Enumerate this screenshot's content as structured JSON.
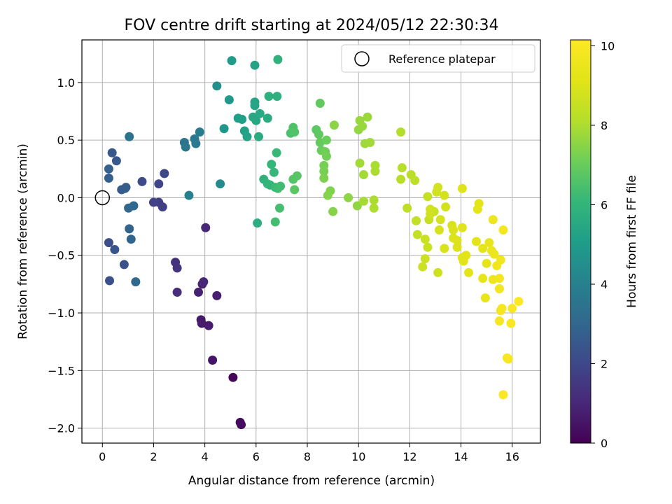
{
  "chart_data": {
    "type": "scatter",
    "title": "FOV centre drift starting at 2024/05/12 22:30:34",
    "xlabel": "Angular distance from reference (arcmin)",
    "ylabel": "Rotation from reference (arcmin)",
    "xlim": [
      -0.8,
      17.1
    ],
    "ylim": [
      -2.13,
      1.37
    ],
    "xticks": [
      0,
      2,
      4,
      6,
      8,
      10,
      12,
      14,
      16
    ],
    "yticks": [
      -2.0,
      -1.5,
      -1.0,
      -0.5,
      0.0,
      0.5,
      1.0
    ],
    "xtick_labels": [
      "0",
      "2",
      "4",
      "6",
      "8",
      "10",
      "12",
      "14",
      "16"
    ],
    "ytick_labels": [
      "−2.0",
      "−1.5",
      "−1.0",
      "−0.5",
      "0.0",
      "0.5",
      "1.0"
    ],
    "grid": true,
    "legend": {
      "placement": "upper right",
      "label": "Reference platepar",
      "marker": "open circle"
    },
    "reference_point": {
      "x": 0,
      "y": 0
    },
    "colormap": "viridis",
    "colorbar": {
      "label": "Hours from first FF file",
      "range": [
        0,
        10.15
      ],
      "ticks": [
        0,
        2,
        4,
        6,
        8,
        10
      ],
      "tick_labels": [
        "0",
        "2",
        "4",
        "6",
        "8",
        "10"
      ]
    },
    "points": [
      {
        "x": 5.1,
        "y": -1.56,
        "c": 0.15
      },
      {
        "x": 5.38,
        "y": -1.95,
        "c": 0.25
      },
      {
        "x": 5.42,
        "y": -1.97,
        "c": 0.3
      },
      {
        "x": 4.3,
        "y": -1.41,
        "c": 0.5
      },
      {
        "x": 3.85,
        "y": -1.06,
        "c": 0.6
      },
      {
        "x": 3.88,
        "y": -1.09,
        "c": 0.65
      },
      {
        "x": 4.15,
        "y": -1.11,
        "c": 0.7
      },
      {
        "x": 4.47,
        "y": -0.85,
        "c": 0.8
      },
      {
        "x": 3.75,
        "y": -0.82,
        "c": 0.85
      },
      {
        "x": 3.9,
        "y": -0.75,
        "c": 0.9
      },
      {
        "x": 3.95,
        "y": -0.73,
        "c": 0.95
      },
      {
        "x": 4.03,
        "y": -0.26,
        "c": 1.0
      },
      {
        "x": 2.92,
        "y": -0.82,
        "c": 1.2
      },
      {
        "x": 2.85,
        "y": -0.56,
        "c": 1.35
      },
      {
        "x": 2.92,
        "y": -0.61,
        "c": 1.4
      },
      {
        "x": 2.2,
        "y": -0.04,
        "c": 1.7
      },
      {
        "x": 2.35,
        "y": -0.08,
        "c": 1.75
      },
      {
        "x": 2.0,
        "y": -0.04,
        "c": 1.85
      },
      {
        "x": 2.2,
        "y": 0.12,
        "c": 1.9
      },
      {
        "x": 2.42,
        "y": 0.21,
        "c": 2.0
      },
      {
        "x": 1.55,
        "y": 0.14,
        "c": 2.1
      },
      {
        "x": 0.25,
        "y": -0.39,
        "c": 2.2
      },
      {
        "x": 0.28,
        "y": -0.72,
        "c": 2.25
      },
      {
        "x": 0.85,
        "y": -0.58,
        "c": 2.3
      },
      {
        "x": 0.48,
        "y": -0.45,
        "c": 2.4
      },
      {
        "x": 0.38,
        "y": 0.39,
        "c": 2.5
      },
      {
        "x": 0.55,
        "y": 0.32,
        "c": 2.55
      },
      {
        "x": 0.75,
        "y": 0.07,
        "c": 2.6
      },
      {
        "x": 0.88,
        "y": 0.08,
        "c": 2.65
      },
      {
        "x": 0.92,
        "y": 0.09,
        "c": 2.7
      },
      {
        "x": 0.25,
        "y": 0.17,
        "c": 2.75
      },
      {
        "x": 0.25,
        "y": 0.25,
        "c": 2.8
      },
      {
        "x": 1.05,
        "y": -0.27,
        "c": 2.9
      },
      {
        "x": 1.12,
        "y": -0.36,
        "c": 2.95
      },
      {
        "x": 1.02,
        "y": -0.09,
        "c": 3.0
      },
      {
        "x": 1.22,
        "y": -0.07,
        "c": 3.05
      },
      {
        "x": 1.3,
        "y": -0.73,
        "c": 3.1
      },
      {
        "x": 1.05,
        "y": 0.53,
        "c": 3.5
      },
      {
        "x": 3.2,
        "y": 0.48,
        "c": 3.6
      },
      {
        "x": 3.25,
        "y": 0.44,
        "c": 3.65
      },
      {
        "x": 3.6,
        "y": 0.51,
        "c": 3.7
      },
      {
        "x": 3.65,
        "y": 0.47,
        "c": 3.75
      },
      {
        "x": 3.8,
        "y": 0.57,
        "c": 3.8
      },
      {
        "x": 3.38,
        "y": 0.02,
        "c": 4.0
      },
      {
        "x": 4.6,
        "y": 0.12,
        "c": 4.4
      },
      {
        "x": 4.47,
        "y": 0.97,
        "c": 4.6
      },
      {
        "x": 4.75,
        "y": 0.6,
        "c": 4.8
      },
      {
        "x": 4.95,
        "y": 0.85,
        "c": 4.9
      },
      {
        "x": 5.05,
        "y": 1.19,
        "c": 5.0
      },
      {
        "x": 5.3,
        "y": 0.69,
        "c": 5.1
      },
      {
        "x": 5.45,
        "y": 0.68,
        "c": 5.15
      },
      {
        "x": 5.55,
        "y": 0.58,
        "c": 5.2
      },
      {
        "x": 5.65,
        "y": 0.53,
        "c": 5.25
      },
      {
        "x": 5.95,
        "y": 1.15,
        "c": 5.3
      },
      {
        "x": 5.95,
        "y": 0.83,
        "c": 5.35
      },
      {
        "x": 5.95,
        "y": 0.8,
        "c": 5.4
      },
      {
        "x": 5.88,
        "y": 0.7,
        "c": 5.45
      },
      {
        "x": 6.0,
        "y": 0.67,
        "c": 5.5
      },
      {
        "x": 6.15,
        "y": 0.73,
        "c": 5.55
      },
      {
        "x": 6.45,
        "y": 0.69,
        "c": 5.6
      },
      {
        "x": 6.1,
        "y": 0.53,
        "c": 5.65
      },
      {
        "x": 6.05,
        "y": -0.22,
        "c": 5.7
      },
      {
        "x": 6.5,
        "y": 0.88,
        "c": 5.75
      },
      {
        "x": 6.82,
        "y": 0.88,
        "c": 5.8
      },
      {
        "x": 6.85,
        "y": 1.2,
        "c": 5.85
      },
      {
        "x": 6.3,
        "y": 0.16,
        "c": 5.9
      },
      {
        "x": 6.45,
        "y": 0.12,
        "c": 5.95
      },
      {
        "x": 6.55,
        "y": 0.11,
        "c": 6.0
      },
      {
        "x": 6.6,
        "y": 0.29,
        "c": 6.05
      },
      {
        "x": 6.7,
        "y": 0.22,
        "c": 6.1
      },
      {
        "x": 6.8,
        "y": 0.39,
        "c": 6.15
      },
      {
        "x": 6.75,
        "y": 0.09,
        "c": 6.2
      },
      {
        "x": 6.85,
        "y": 0.08,
        "c": 6.25
      },
      {
        "x": 6.95,
        "y": 0.1,
        "c": 6.3
      },
      {
        "x": 6.75,
        "y": -0.21,
        "c": 6.35
      },
      {
        "x": 6.92,
        "y": -0.09,
        "c": 6.4
      },
      {
        "x": 7.35,
        "y": 0.56,
        "c": 6.5
      },
      {
        "x": 7.45,
        "y": 0.61,
        "c": 6.55
      },
      {
        "x": 7.5,
        "y": 0.57,
        "c": 6.6
      },
      {
        "x": 7.45,
        "y": 0.16,
        "c": 6.65
      },
      {
        "x": 7.6,
        "y": 0.19,
        "c": 6.7
      },
      {
        "x": 7.5,
        "y": 0.07,
        "c": 6.75
      },
      {
        "x": 8.35,
        "y": 0.59,
        "c": 6.8
      },
      {
        "x": 8.45,
        "y": 0.55,
        "c": 6.85
      },
      {
        "x": 8.5,
        "y": 0.82,
        "c": 6.9
      },
      {
        "x": 8.5,
        "y": 0.48,
        "c": 6.95
      },
      {
        "x": 8.55,
        "y": 0.41,
        "c": 7.0
      },
      {
        "x": 8.75,
        "y": 0.5,
        "c": 7.05
      },
      {
        "x": 8.7,
        "y": 0.4,
        "c": 7.1
      },
      {
        "x": 8.75,
        "y": 0.36,
        "c": 7.15
      },
      {
        "x": 8.65,
        "y": 0.28,
        "c": 7.2
      },
      {
        "x": 8.65,
        "y": 0.23,
        "c": 7.25
      },
      {
        "x": 8.65,
        "y": 0.17,
        "c": 7.3
      },
      {
        "x": 8.9,
        "y": 0.06,
        "c": 7.35
      },
      {
        "x": 8.8,
        "y": 0.02,
        "c": 7.4
      },
      {
        "x": 9.0,
        "y": -0.12,
        "c": 7.45
      },
      {
        "x": 9.05,
        "y": 0.63,
        "c": 7.5
      },
      {
        "x": 9.6,
        "y": 0.0,
        "c": 7.55
      },
      {
        "x": 9.95,
        "y": -0.07,
        "c": 7.6
      },
      {
        "x": 10.0,
        "y": 0.59,
        "c": 7.65
      },
      {
        "x": 10.05,
        "y": 0.67,
        "c": 7.7
      },
      {
        "x": 10.15,
        "y": 0.62,
        "c": 7.72
      },
      {
        "x": 10.35,
        "y": 0.7,
        "c": 7.75
      },
      {
        "x": 10.25,
        "y": 0.47,
        "c": 7.8
      },
      {
        "x": 10.45,
        "y": 0.48,
        "c": 7.82
      },
      {
        "x": 10.05,
        "y": 0.3,
        "c": 7.85
      },
      {
        "x": 10.2,
        "y": 0.2,
        "c": 7.88
      },
      {
        "x": 10.2,
        "y": -0.03,
        "c": 7.9
      },
      {
        "x": 10.65,
        "y": 0.28,
        "c": 7.95
      },
      {
        "x": 10.65,
        "y": 0.23,
        "c": 7.97
      },
      {
        "x": 10.6,
        "y": -0.02,
        "c": 8.0
      },
      {
        "x": 10.6,
        "y": -0.09,
        "c": 8.02
      },
      {
        "x": 11.65,
        "y": 0.57,
        "c": 8.1
      },
      {
        "x": 11.7,
        "y": 0.26,
        "c": 8.15
      },
      {
        "x": 11.65,
        "y": 0.16,
        "c": 8.2
      },
      {
        "x": 12.05,
        "y": 0.2,
        "c": 8.25
      },
      {
        "x": 12.2,
        "y": 0.15,
        "c": 8.3
      },
      {
        "x": 11.9,
        "y": -0.09,
        "c": 8.35
      },
      {
        "x": 12.25,
        "y": -0.2,
        "c": 8.4
      },
      {
        "x": 12.3,
        "y": -0.32,
        "c": 8.45
      },
      {
        "x": 12.7,
        "y": 0.01,
        "c": 8.5
      },
      {
        "x": 12.75,
        "y": -0.19,
        "c": 8.52
      },
      {
        "x": 12.95,
        "y": -0.12,
        "c": 8.55
      },
      {
        "x": 12.6,
        "y": -0.36,
        "c": 8.58
      },
      {
        "x": 12.7,
        "y": -0.43,
        "c": 8.6
      },
      {
        "x": 12.6,
        "y": -0.53,
        "c": 8.62
      },
      {
        "x": 12.5,
        "y": -0.6,
        "c": 8.65
      },
      {
        "x": 13.1,
        "y": -0.65,
        "c": 8.68
      },
      {
        "x": 12.8,
        "y": -0.14,
        "c": 8.7
      },
      {
        "x": 12.8,
        "y": -0.1,
        "c": 8.72
      },
      {
        "x": 13.05,
        "y": 0.05,
        "c": 8.75
      },
      {
        "x": 13.1,
        "y": 0.09,
        "c": 8.78
      },
      {
        "x": 13.35,
        "y": 0.02,
        "c": 8.8
      },
      {
        "x": 13.4,
        "y": -0.08,
        "c": 8.82
      },
      {
        "x": 13.2,
        "y": -0.19,
        "c": 8.85
      },
      {
        "x": 13.15,
        "y": -0.28,
        "c": 8.88
      },
      {
        "x": 13.35,
        "y": -0.44,
        "c": 8.9
      },
      {
        "x": 13.65,
        "y": -0.24,
        "c": 8.92
      },
      {
        "x": 13.7,
        "y": -0.28,
        "c": 8.95
      },
      {
        "x": 13.7,
        "y": -0.35,
        "c": 8.98
      },
      {
        "x": 13.85,
        "y": -0.37,
        "c": 9.0
      },
      {
        "x": 13.85,
        "y": -0.43,
        "c": 9.02
      },
      {
        "x": 14.05,
        "y": 0.08,
        "c": 9.05
      },
      {
        "x": 14.05,
        "y": -0.26,
        "c": 9.08
      },
      {
        "x": 14.05,
        "y": -0.52,
        "c": 9.1
      },
      {
        "x": 14.1,
        "y": -0.55,
        "c": 9.12
      },
      {
        "x": 14.2,
        "y": -0.5,
        "c": 9.15
      },
      {
        "x": 14.3,
        "y": -0.65,
        "c": 9.18
      },
      {
        "x": 14.7,
        "y": -0.05,
        "c": 9.2
      },
      {
        "x": 14.65,
        "y": -0.1,
        "c": 9.22
      },
      {
        "x": 14.6,
        "y": -0.38,
        "c": 9.25
      },
      {
        "x": 14.85,
        "y": -0.44,
        "c": 9.28
      },
      {
        "x": 15.0,
        "y": -0.57,
        "c": 9.3
      },
      {
        "x": 14.85,
        "y": -0.7,
        "c": 9.32
      },
      {
        "x": 14.95,
        "y": -0.87,
        "c": 9.35
      },
      {
        "x": 15.1,
        "y": -0.39,
        "c": 9.4
      },
      {
        "x": 15.2,
        "y": -0.46,
        "c": 9.45
      },
      {
        "x": 15.3,
        "y": -0.49,
        "c": 9.5
      },
      {
        "x": 15.25,
        "y": -0.19,
        "c": 9.55
      },
      {
        "x": 15.25,
        "y": -0.71,
        "c": 9.6
      },
      {
        "x": 15.4,
        "y": -0.59,
        "c": 9.65
      },
      {
        "x": 15.55,
        "y": -0.54,
        "c": 9.7
      },
      {
        "x": 15.5,
        "y": -0.7,
        "c": 9.72
      },
      {
        "x": 15.5,
        "y": -0.79,
        "c": 9.75
      },
      {
        "x": 15.65,
        "y": -0.28,
        "c": 9.8
      },
      {
        "x": 15.55,
        "y": -0.98,
        "c": 9.85
      },
      {
        "x": 15.6,
        "y": -0.96,
        "c": 9.88
      },
      {
        "x": 15.5,
        "y": -1.07,
        "c": 9.9
      },
      {
        "x": 15.8,
        "y": -1.39,
        "c": 9.95
      },
      {
        "x": 15.85,
        "y": -1.4,
        "c": 9.98
      },
      {
        "x": 15.95,
        "y": -1.09,
        "c": 10.0
      },
      {
        "x": 16.0,
        "y": -0.96,
        "c": 10.05
      },
      {
        "x": 16.25,
        "y": -0.9,
        "c": 10.1
      },
      {
        "x": 15.65,
        "y": -1.71,
        "c": 10.12
      }
    ]
  }
}
